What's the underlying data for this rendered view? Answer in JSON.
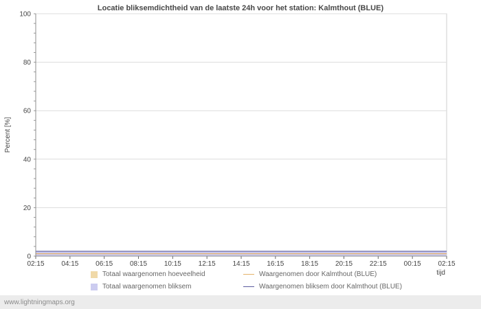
{
  "watermark": "www.lightningmaps.org",
  "chart_data": {
    "type": "area",
    "title": "Locatie bliksemdichtheid van de laatste 24h voor het station: Kalmthout (BLUE)",
    "xlabel": "tijd",
    "ylabel": "Percent  [%]",
    "ylim": [
      0,
      100
    ],
    "yticks": [
      0,
      20,
      40,
      60,
      80,
      100
    ],
    "grid": true,
    "legend_position": "bottom",
    "x": [
      "02:15",
      "04:15",
      "06:15",
      "08:15",
      "10:15",
      "12:15",
      "14:15",
      "16:15",
      "18:15",
      "20:15",
      "22:15",
      "00:15",
      "02:15"
    ],
    "series": [
      {
        "name": "Totaal waargenomen hoeveelheid",
        "type": "area",
        "color": "#f0d9a8",
        "values": [
          1,
          1,
          1,
          1,
          1,
          1,
          1,
          1,
          1,
          1,
          1,
          1,
          1
        ]
      },
      {
        "name": "Waargenomen door Kalmthout (BLUE)",
        "type": "line",
        "color": "#e5b269",
        "values": [
          1,
          1,
          1,
          1,
          1,
          1,
          1,
          1,
          1,
          1,
          1,
          1,
          1
        ]
      },
      {
        "name": "Totaal waargenomen bliksem",
        "type": "area",
        "color": "#ccccf0",
        "values": [
          2,
          2,
          2,
          2,
          2,
          2,
          2,
          2,
          2,
          2,
          2,
          2,
          2
        ]
      },
      {
        "name": "Waargenomen bliksem door Kalmthout (BLUE)",
        "type": "line",
        "color": "#5a5a9e",
        "values": [
          2,
          2,
          2,
          2,
          2,
          2,
          2,
          2,
          2,
          2,
          2,
          2,
          2
        ]
      }
    ]
  }
}
